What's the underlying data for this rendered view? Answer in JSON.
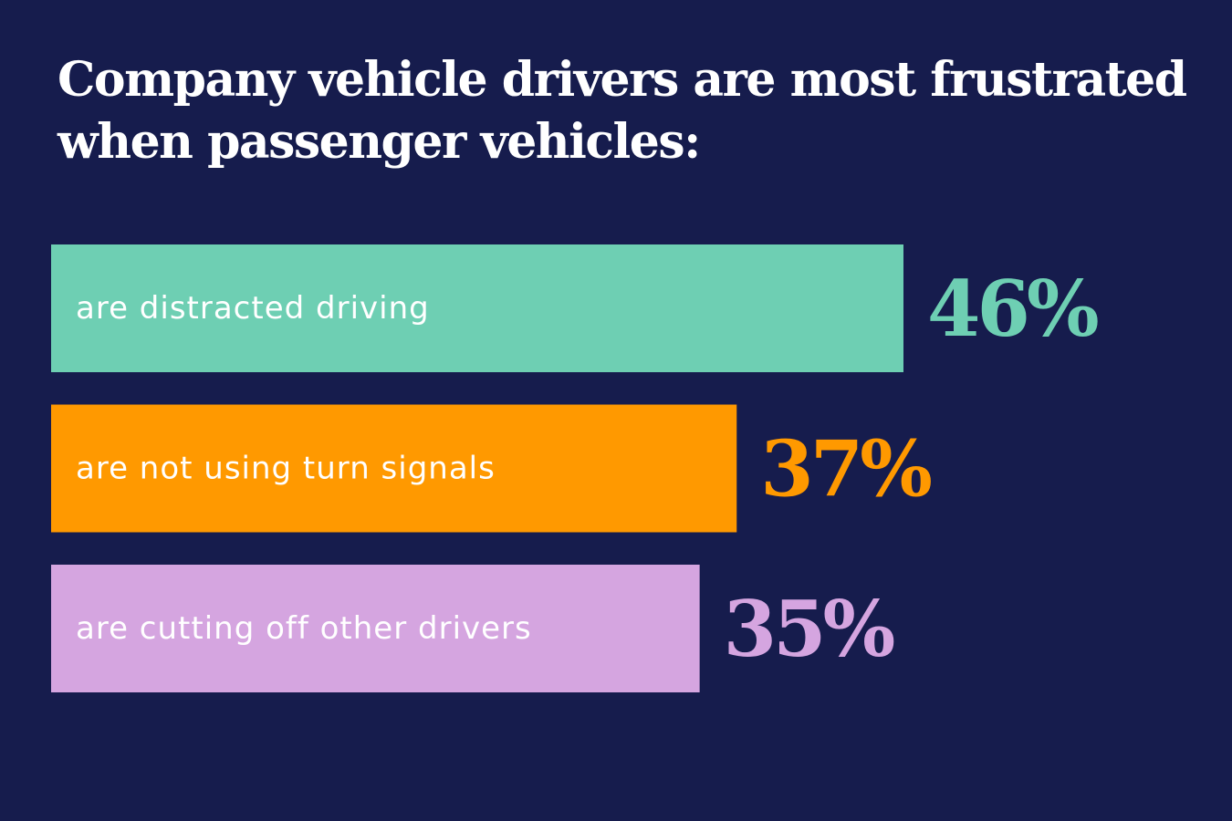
{
  "title_lines": [
    "Company vehicle drivers are most frustrated",
    "when passenger vehicles:"
  ],
  "colors": {
    "background": "#161c4d",
    "text": "#ffffff"
  },
  "chart_data": {
    "type": "bar",
    "orientation": "horizontal",
    "title": "Company vehicle drivers are most frustrated when passenger vehicles:",
    "unit": "%",
    "categories": [
      "are distracted driving",
      "are not using turn signals",
      "are cutting off other drivers"
    ],
    "values": [
      46,
      37,
      35
    ],
    "value_labels": [
      "46%",
      "37%",
      "35%"
    ],
    "colors": [
      "#6ecfb3",
      "#ff9900",
      "#d5a5e0"
    ],
    "xlim": [
      0,
      50
    ],
    "grid": false,
    "legend": "none"
  }
}
